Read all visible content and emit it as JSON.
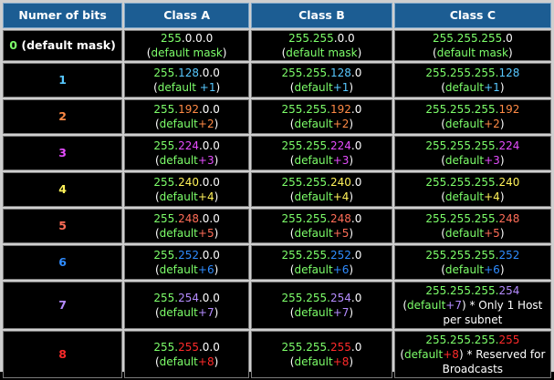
{
  "colors": {
    "green": "#7dff6a",
    "white": "#ffffff",
    "b1": "#57c8ff",
    "b2": "#ff8a45",
    "b3": "#e64dff",
    "b4": "#fff25a",
    "b5": "#ff6d57",
    "b6": "#2f8cff",
    "b7": "#b58cff",
    "b8": "#ff2a2a"
  },
  "headers": [
    "Numer of bits",
    "Class A",
    "Class B",
    "Class C"
  ],
  "rows": [
    {
      "bits": "0",
      "bits_suffix": " (default mask)",
      "a": [
        "255",
        ".0.0.0",
        "(",
        "default mask",
        ")"
      ],
      "b": [
        "255.255",
        ".0.0",
        "(",
        "default mask",
        ")"
      ],
      "c": [
        "255.255.255",
        ".0",
        "(",
        "default mask",
        ")"
      ]
    },
    {
      "bits": "1",
      "a": [
        "255.",
        "128",
        ".0.0",
        "(default ",
        "+1",
        ")"
      ],
      "b": [
        "255.255.",
        "128",
        ".0",
        "(default",
        "+1",
        ")"
      ],
      "c": [
        "255.255.255.",
        "128",
        "",
        "(default",
        "+1",
        ")"
      ]
    },
    {
      "bits": "2",
      "a": [
        "255.",
        "192",
        ".0.0",
        "(default",
        "+2",
        ")"
      ],
      "b": [
        "255.255.",
        "192",
        ".0",
        "(default",
        "+2",
        ")"
      ],
      "c": [
        "255.255.255.",
        "192",
        "",
        "(default",
        "+2",
        ")"
      ]
    },
    {
      "bits": "3",
      "a": [
        "255.",
        "224",
        ".0.0",
        "(default",
        "+3",
        ")"
      ],
      "b": [
        "255.255.",
        "224",
        ".0",
        "(default",
        "+3",
        ")"
      ],
      "c": [
        "255.255.255.",
        "224",
        "",
        "(default",
        "+3",
        ")"
      ]
    },
    {
      "bits": "4",
      "a": [
        "255.",
        "240",
        ".0.0",
        "(default",
        "+4",
        ")"
      ],
      "b": [
        "255.255.",
        "240",
        ".0",
        "(default",
        "+4",
        ")"
      ],
      "c": [
        "255.255.255.",
        "240",
        "",
        "(default",
        "+4",
        ")"
      ]
    },
    {
      "bits": "5",
      "a": [
        "255.",
        "248",
        ".0.0",
        "(default",
        "+5",
        ")"
      ],
      "b": [
        "255.255.",
        "248",
        ".0",
        "(default",
        "+5",
        ")"
      ],
      "c": [
        "255.255.255.",
        "248",
        "",
        "(default",
        "+5",
        ")"
      ]
    },
    {
      "bits": "6",
      "a": [
        "255.",
        "252",
        ".0.0",
        "(default",
        "+6",
        ")"
      ],
      "b": [
        "255.255.",
        "252",
        ".0",
        "(default",
        "+6",
        ")"
      ],
      "c": [
        "255.255.255.",
        "252",
        "",
        "(default",
        "+6",
        ")"
      ]
    },
    {
      "bits": "7",
      "a": [
        "255.",
        "254",
        ".0.0",
        "(default",
        "+7",
        ")"
      ],
      "b": [
        "255.255.",
        "254",
        ".0",
        "(default",
        "+7",
        ")"
      ],
      "c": [
        "255.255.255.",
        "254",
        "",
        "(default",
        "+7",
        ")"
      ],
      "c_note": " * Only 1 Host per subnet"
    },
    {
      "bits": "8",
      "a": [
        "255.",
        "255",
        ".0.0",
        "(default",
        "+8",
        ")"
      ],
      "b": [
        "255.255.",
        "255",
        ".0",
        "(default",
        "+8",
        ")"
      ],
      "c": [
        "255.255.255.",
        "255",
        "",
        "(default",
        "+8",
        ")"
      ],
      "c_note": " * Reserved for Broadcasts"
    }
  ]
}
